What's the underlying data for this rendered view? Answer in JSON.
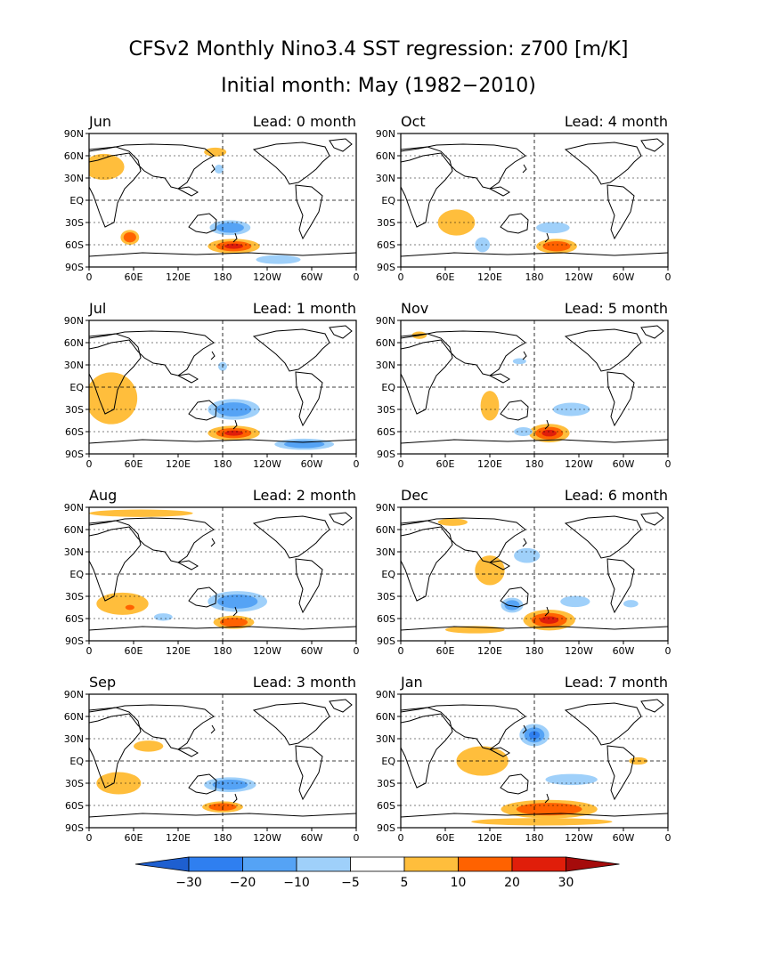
{
  "figure": {
    "title": "CFSv2 Monthly Nino3.4 SST regression: z700 [m/K]",
    "subtitle": "Initial month: May (1982−2010)"
  },
  "axes": {
    "lat_labels": [
      "90N",
      "60N",
      "30N",
      "EQ",
      "30S",
      "60S",
      "90S"
    ],
    "lon_labels": [
      "0",
      "60E",
      "120E",
      "180",
      "120W",
      "60W",
      "0"
    ]
  },
  "panels": [
    {
      "month": "Jun",
      "lead": "Lead: 0 month"
    },
    {
      "month": "Oct",
      "lead": "Lead: 4 month"
    },
    {
      "month": "Jul",
      "lead": "Lead: 1 month"
    },
    {
      "month": "Nov",
      "lead": "Lead: 5 month"
    },
    {
      "month": "Aug",
      "lead": "Lead: 2 month"
    },
    {
      "month": "Dec",
      "lead": "Lead: 6 month"
    },
    {
      "month": "Sep",
      "lead": "Lead: 3 month"
    },
    {
      "month": "Jan",
      "lead": "Lead: 7 month"
    }
  ],
  "colorbar": {
    "labels": [
      "−30",
      "−20",
      "−10",
      "−5",
      "5",
      "10",
      "20",
      "30"
    ],
    "colors": [
      "#1e5fd0",
      "#2f7ff0",
      "#55a3f5",
      "#9fd0fa",
      "#ffffff",
      "#ffbe3c",
      "#ff6200",
      "#e01e0a",
      "#a50b0b"
    ]
  },
  "chart_data": {
    "type": "map",
    "units": "m/K",
    "levels": [
      -30,
      -20,
      -10,
      -5,
      5,
      10,
      20,
      30
    ],
    "colors": {
      "neg30": "#1e5fd0",
      "neg20": "#2f7ff0",
      "neg10": "#55a3f5",
      "neg5": "#9fd0fa",
      "pos5": "#ffbe3c",
      "pos10": "#ff6200",
      "pos20": "#e01e0a",
      "pos30": "#a50b0b"
    },
    "panels": [
      {
        "month": "Jun",
        "lead": 0,
        "features": [
          {
            "lon": 195,
            "lat": -62,
            "w": 70,
            "h": 20,
            "level": 20
          },
          {
            "lon": 190,
            "lat": -37,
            "w": 55,
            "h": 20,
            "level": -10
          },
          {
            "lon": 55,
            "lat": -50,
            "w": 25,
            "h": 20,
            "level": 10
          },
          {
            "lon": 20,
            "lat": 45,
            "w": 55,
            "h": 35,
            "level": 5
          },
          {
            "lon": 170,
            "lat": 65,
            "w": 30,
            "h": 12,
            "level": 5
          },
          {
            "lon": 175,
            "lat": 42,
            "w": 12,
            "h": 12,
            "level": -5
          },
          {
            "lon": 255,
            "lat": -80,
            "w": 60,
            "h": 12,
            "level": -5
          }
        ]
      },
      {
        "month": "Oct",
        "lead": 4,
        "features": [
          {
            "lon": 75,
            "lat": -30,
            "w": 50,
            "h": 35,
            "level": 5
          },
          {
            "lon": 110,
            "lat": -60,
            "w": 20,
            "h": 20,
            "level": -5
          },
          {
            "lon": 210,
            "lat": -62,
            "w": 55,
            "h": 20,
            "level": 10
          },
          {
            "lon": 205,
            "lat": -37,
            "w": 45,
            "h": 15,
            "level": -5
          }
        ]
      },
      {
        "month": "Jul",
        "lead": 1,
        "features": [
          {
            "lon": 30,
            "lat": -15,
            "w": 70,
            "h": 70,
            "level": 5
          },
          {
            "lon": 195,
            "lat": -30,
            "w": 70,
            "h": 28,
            "level": -10
          },
          {
            "lon": 195,
            "lat": -62,
            "w": 70,
            "h": 20,
            "level": 20
          },
          {
            "lon": 290,
            "lat": -77,
            "w": 80,
            "h": 15,
            "level": -10
          },
          {
            "lon": 180,
            "lat": 28,
            "w": 12,
            "h": 12,
            "level": -5
          }
        ]
      },
      {
        "month": "Nov",
        "lead": 5,
        "features": [
          {
            "lon": 120,
            "lat": -25,
            "w": 25,
            "h": 40,
            "level": 5
          },
          {
            "lon": 230,
            "lat": -30,
            "w": 50,
            "h": 18,
            "level": -5
          },
          {
            "lon": 200,
            "lat": -62,
            "w": 55,
            "h": 25,
            "level": 20
          },
          {
            "lon": 165,
            "lat": -60,
            "w": 25,
            "h": 12,
            "level": -5
          },
          {
            "lon": 25,
            "lat": 70,
            "w": 20,
            "h": 10,
            "level": 5
          },
          {
            "lon": 160,
            "lat": 35,
            "w": 18,
            "h": 8,
            "level": -5
          }
        ]
      },
      {
        "month": "Aug",
        "lead": 2,
        "features": [
          {
            "lon": 70,
            "lat": 82,
            "w": 140,
            "h": 10,
            "level": 5
          },
          {
            "lon": 45,
            "lat": -40,
            "w": 70,
            "h": 30,
            "level": 5
          },
          {
            "lon": 55,
            "lat": -45,
            "w": 18,
            "h": 10,
            "level": 10
          },
          {
            "lon": 200,
            "lat": -37,
            "w": 80,
            "h": 28,
            "level": -10
          },
          {
            "lon": 195,
            "lat": -65,
            "w": 55,
            "h": 18,
            "level": 10
          },
          {
            "lon": 100,
            "lat": -58,
            "w": 25,
            "h": 10,
            "level": -5
          }
        ]
      },
      {
        "month": "Dec",
        "lead": 6,
        "features": [
          {
            "lon": 120,
            "lat": 5,
            "w": 40,
            "h": 40,
            "level": 5
          },
          {
            "lon": 170,
            "lat": 25,
            "w": 35,
            "h": 20,
            "level": -5
          },
          {
            "lon": 150,
            "lat": -42,
            "w": 30,
            "h": 20,
            "level": -10
          },
          {
            "lon": 200,
            "lat": -62,
            "w": 70,
            "h": 28,
            "level": 20
          },
          {
            "lon": 235,
            "lat": -37,
            "w": 40,
            "h": 15,
            "level": -5
          },
          {
            "lon": 310,
            "lat": -40,
            "w": 20,
            "h": 10,
            "level": -5
          },
          {
            "lon": 70,
            "lat": 70,
            "w": 40,
            "h": 10,
            "level": 5
          },
          {
            "lon": 100,
            "lat": -75,
            "w": 80,
            "h": 10,
            "level": 5
          }
        ]
      },
      {
        "month": "Sep",
        "lead": 3,
        "features": [
          {
            "lon": 40,
            "lat": -30,
            "w": 60,
            "h": 30,
            "level": 5
          },
          {
            "lon": 190,
            "lat": -32,
            "w": 70,
            "h": 20,
            "level": -10
          },
          {
            "lon": 180,
            "lat": -62,
            "w": 55,
            "h": 15,
            "level": 10
          },
          {
            "lon": 80,
            "lat": 20,
            "w": 40,
            "h": 15,
            "level": 5
          }
        ]
      },
      {
        "month": "Jan",
        "lead": 7,
        "features": [
          {
            "lon": 180,
            "lat": 35,
            "w": 40,
            "h": 30,
            "level": -20
          },
          {
            "lon": 200,
            "lat": -65,
            "w": 130,
            "h": 25,
            "level": 10
          },
          {
            "lon": 190,
            "lat": -82,
            "w": 190,
            "h": 10,
            "level": 5
          },
          {
            "lon": 110,
            "lat": 0,
            "w": 70,
            "h": 40,
            "level": 5
          },
          {
            "lon": 320,
            "lat": 0,
            "w": 25,
            "h": 10,
            "level": 5
          },
          {
            "lon": 230,
            "lat": -25,
            "w": 70,
            "h": 15,
            "level": -5
          }
        ]
      }
    ]
  }
}
